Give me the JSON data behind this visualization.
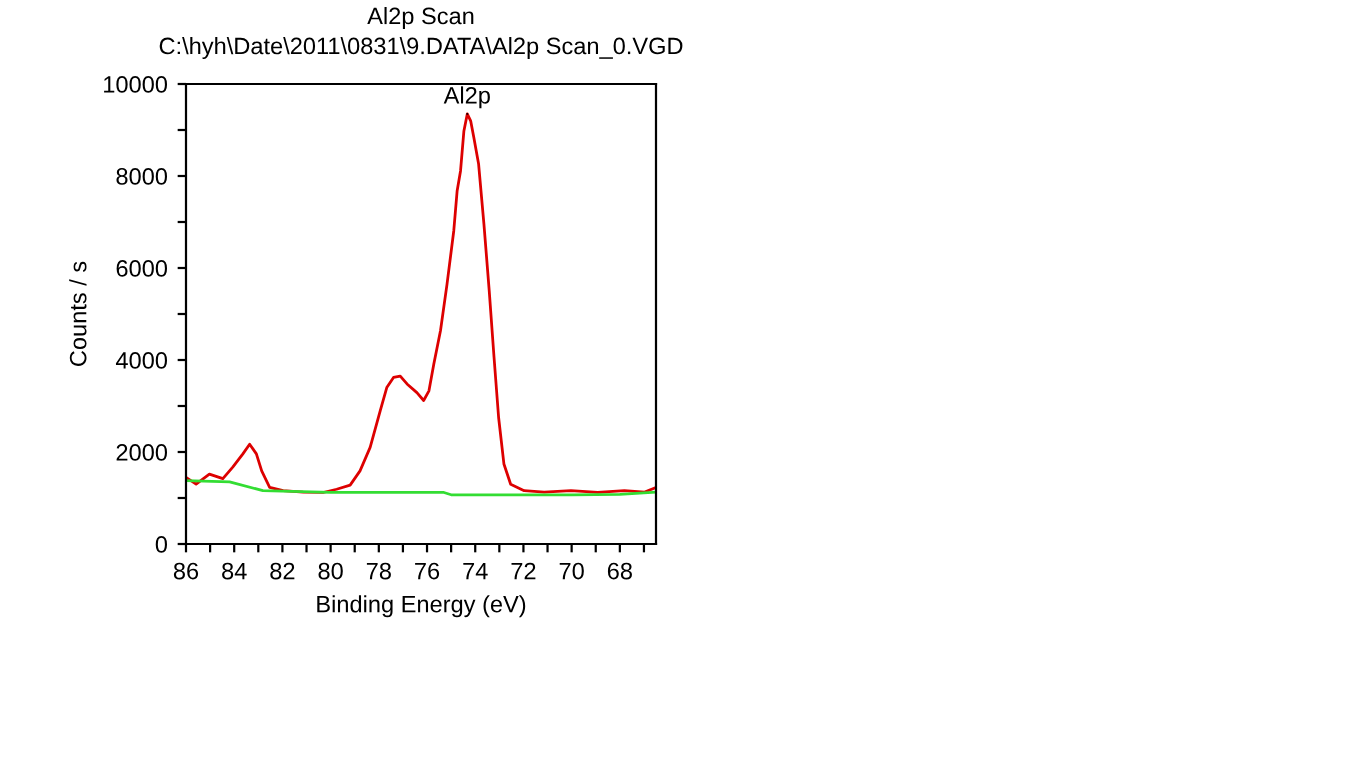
{
  "chart_data": {
    "type": "line",
    "title": "Al2p Scan",
    "subtitle": "C:\\hyh\\Date\\2011\\0831\\9.DATA\\Al2p Scan_0.VGD",
    "xlabel": "Binding Energy (eV)",
    "ylabel": "Counts / s",
    "xlim": [
      86,
      66.5
    ],
    "ylim": [
      0,
      10000
    ],
    "xticks": [
      86,
      {
        "value": 85,
        "label": null
      },
      84,
      {
        "value": 83,
        "label": null
      },
      82,
      {
        "value": 81,
        "label": null
      },
      80,
      {
        "value": 79,
        "label": null
      },
      78,
      {
        "value": 77,
        "label": null
      },
      76,
      {
        "value": 75,
        "label": null
      },
      74,
      {
        "value": 73,
        "label": null
      },
      72,
      {
        "value": 71,
        "label": null
      },
      70,
      {
        "value": 69,
        "label": null
      },
      68,
      {
        "value": 67,
        "label": null
      }
    ],
    "yticks": [
      0,
      {
        "value": 1000,
        "label": null
      },
      2000,
      {
        "value": 3000,
        "label": null
      },
      4000,
      {
        "value": 5000,
        "label": null
      },
      6000,
      {
        "value": 7000,
        "label": null
      },
      8000,
      {
        "value": 9000,
        "label": null
      },
      10000
    ],
    "grid": false,
    "legend": false,
    "marker": "none",
    "line_style": "solid",
    "annotations": [
      {
        "text": "Al2p",
        "x": 74.33,
        "y": 9350
      }
    ],
    "series": [
      {
        "color": "#dd0000",
        "x": [
          86,
          85.58,
          85.03,
          84.47,
          84.06,
          83.64,
          83.36,
          83.08,
          82.86,
          82.53,
          81.97,
          81.14,
          80.31,
          79.75,
          79.19,
          78.78,
          78.36,
          77.94,
          77.67,
          77.39,
          77.11,
          76.83,
          76.42,
          76.14,
          75.92,
          75.72,
          75.44,
          75.17,
          74.89,
          74.75,
          74.61,
          74.47,
          74.33,
          74.19,
          74.06,
          73.86,
          73.64,
          73.42,
          73.22,
          73.03,
          72.81,
          72.53,
          71.97,
          71.14,
          70.03,
          68.92,
          67.81,
          66.97,
          66.5
        ],
        "values": [
          1450,
          1300,
          1520,
          1420,
          1670,
          1960,
          2170,
          1960,
          1590,
          1230,
          1160,
          1130,
          1120,
          1190,
          1280,
          1590,
          2100,
          2900,
          3400,
          3620,
          3650,
          3480,
          3290,
          3120,
          3330,
          3910,
          4640,
          5650,
          6810,
          7680,
          8110,
          8980,
          9350,
          9200,
          8840,
          8260,
          6960,
          5510,
          4060,
          2750,
          1740,
          1300,
          1160,
          1130,
          1160,
          1120,
          1160,
          1130,
          1230
        ]
      },
      {
        "color": "#33dd33",
        "x": [
          86,
          84.19,
          82.81,
          80,
          75.3,
          75,
          70,
          68,
          66.5
        ],
        "values": [
          1380,
          1350,
          1160,
          1120,
          1120,
          1070,
          1070,
          1080,
          1130
        ]
      }
    ]
  }
}
